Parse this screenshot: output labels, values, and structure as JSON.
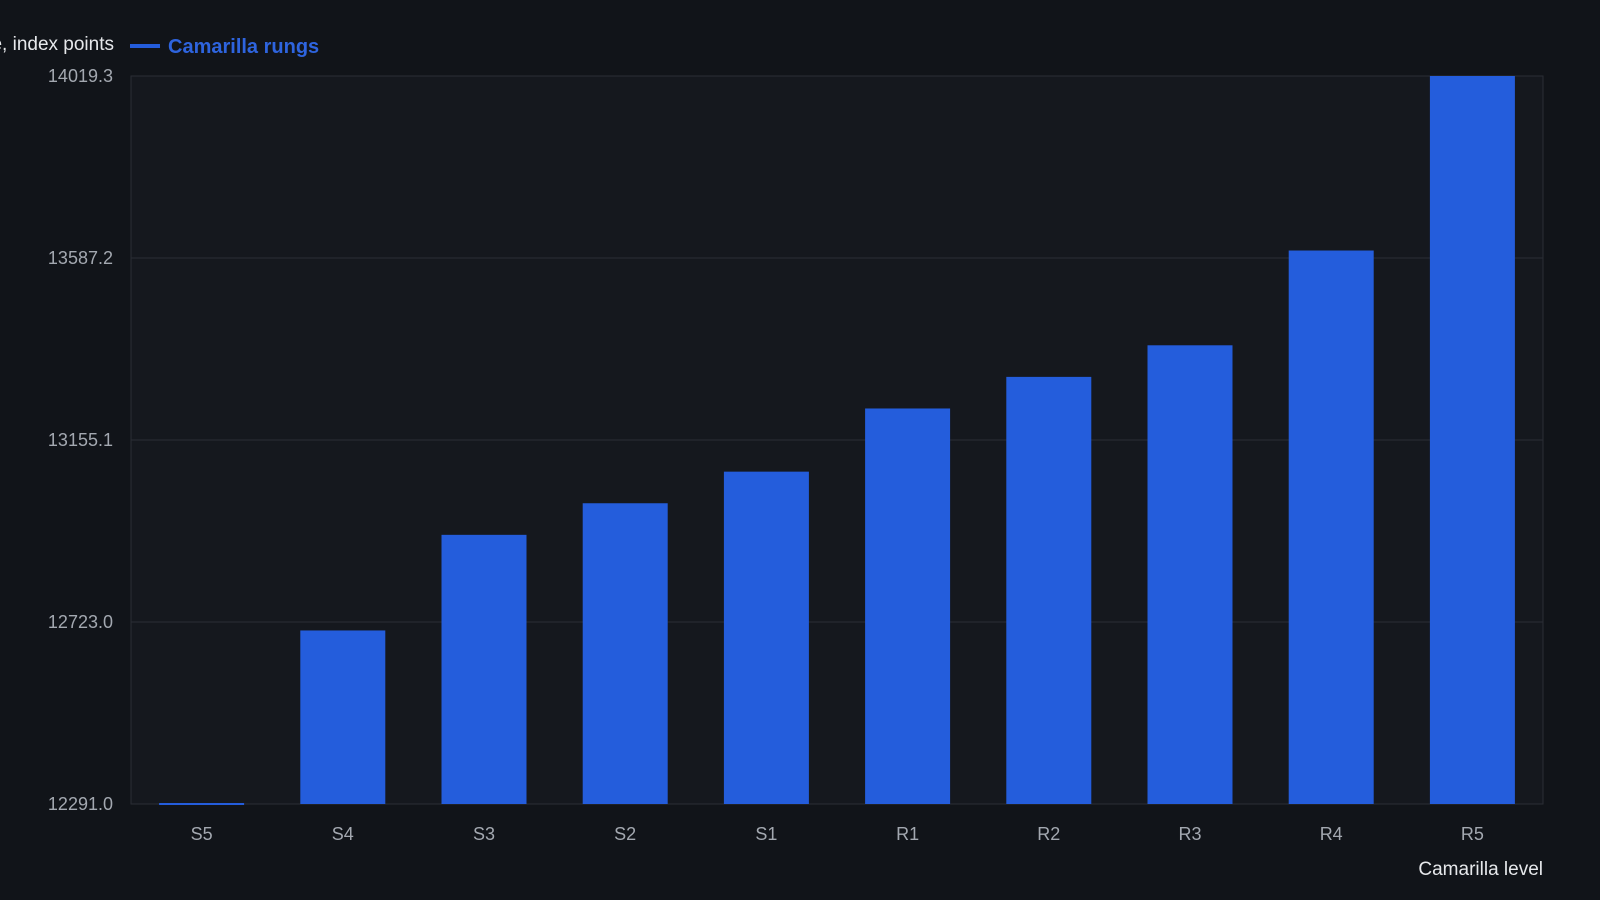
{
  "chart_data": {
    "type": "bar",
    "title": "",
    "ylabel": "e, index points",
    "xlabel": "Camarilla level",
    "categories": [
      "S5",
      "S4",
      "S3",
      "S2",
      "S1",
      "R1",
      "R2",
      "R3",
      "R4",
      "R5"
    ],
    "series": [
      {
        "name": "Camarilla rungs",
        "color": "#245ddc",
        "values": [
          12291.0,
          12703.0,
          12930.0,
          13005.0,
          13080.0,
          13230.0,
          13305.0,
          13380.0,
          13605.0,
          14019.3
        ]
      }
    ],
    "ylim": [
      12291.0,
      14019.3
    ],
    "yticks": [
      "14019.3",
      "13587.2",
      "13155.1",
      "12723.0",
      "12291.0"
    ],
    "ytick_values": [
      14019.3,
      13587.2,
      13155.1,
      12723.0,
      12291.0
    ],
    "grid": true,
    "legend_position": "top-left"
  },
  "colors": {
    "background": "#111419",
    "plot_background": "#15181e",
    "grid": "#2a2e35",
    "bar": "#245ddc",
    "legend_text": "#2e64de"
  }
}
